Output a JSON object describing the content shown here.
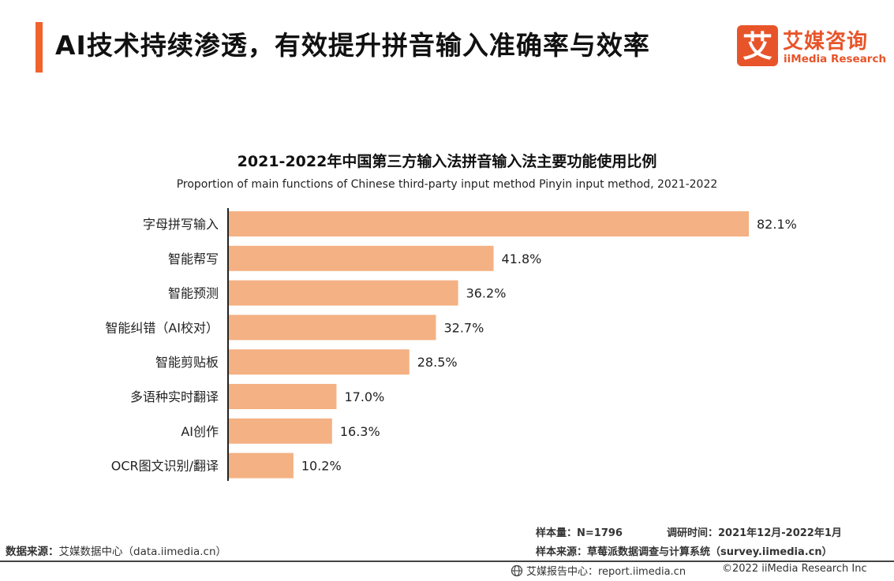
{
  "header": {
    "title": "AI技术持续渗透，有效提升拼音输入准确率与效率",
    "accent_color": "#f2622b"
  },
  "logo": {
    "mark_char": "艾",
    "name_cn": "艾媒咨询",
    "name_en": "iiMedia Research",
    "color": "#e8542a"
  },
  "chart_data": {
    "type": "bar",
    "orientation": "horizontal",
    "title": "2021-2022年中国第三方输入法拼音输入法主要功能使用比例",
    "subtitle": "Proportion of main functions of Chinese third-party input method Pinyin input method, 2021-2022",
    "categories": [
      "字母拼写输入",
      "智能帮写",
      "智能预测",
      "智能纠错（AI校对）",
      "智能剪贴板",
      "多语种实时翻译",
      "AI创作",
      "OCR图文识别/翻译"
    ],
    "values": [
      82.1,
      41.8,
      36.2,
      32.7,
      28.5,
      17.0,
      16.3,
      10.2
    ],
    "value_labels": [
      "82.1%",
      "41.8%",
      "36.2%",
      "32.7%",
      "28.5%",
      "17.0%",
      "16.3%",
      "10.2%"
    ],
    "unit": "%",
    "bar_color": "#f4b183",
    "grid": false
  },
  "meta": {
    "sample_size": "样本量：N=1796",
    "survey_time": "调研时间：2021年12月-2022年1月",
    "sample_source": "样本来源：草莓派数据调查与计算系统（survey.iimedia.cn）"
  },
  "source": {
    "label": "数据来源：",
    "text": "艾媒数据中心（data.iimedia.cn）"
  },
  "footer": {
    "report_center": "艾媒报告中心：report.iimedia.cn",
    "copyright": "©2022  iiMedia Research Inc"
  }
}
